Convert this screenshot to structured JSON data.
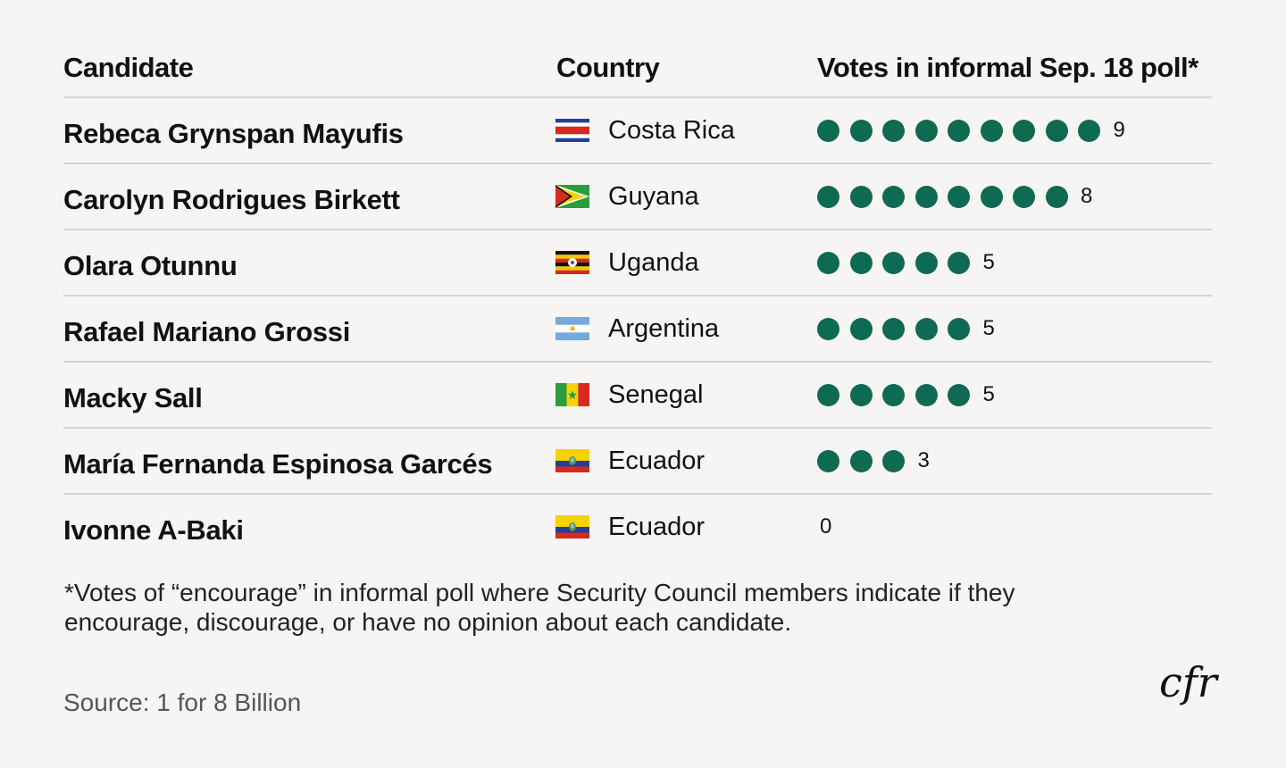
{
  "header": {
    "candidate": "Candidate",
    "country": "Country",
    "votes": "Votes in informal Sep. 18 poll*"
  },
  "rows": [
    {
      "candidate": "Rebeca Grynspan Mayufis",
      "country": "Costa Rica",
      "flag": "costa-rica-flag",
      "votes": 9,
      "votes_label": "9"
    },
    {
      "candidate": "Carolyn Rodrigues Birkett",
      "country": "Guyana",
      "flag": "guyana-flag",
      "votes": 8,
      "votes_label": "8"
    },
    {
      "candidate": "Olara Otunnu",
      "country": "Uganda",
      "flag": "uganda-flag",
      "votes": 5,
      "votes_label": "5"
    },
    {
      "candidate": "Rafael Mariano Grossi",
      "country": "Argentina",
      "flag": "argentina-flag",
      "votes": 5,
      "votes_label": "5"
    },
    {
      "candidate": "Macky Sall",
      "country": "Senegal",
      "flag": "senegal-flag",
      "votes": 5,
      "votes_label": "5"
    },
    {
      "candidate": "María Fernanda Espinosa Garcés",
      "country": "Ecuador",
      "flag": "ecuador-flag",
      "votes": 3,
      "votes_label": "3"
    },
    {
      "candidate": "Ivonne A-Baki",
      "country": "Ecuador",
      "flag": "ecuador-flag",
      "votes": 0,
      "votes_label": "0"
    }
  ],
  "footnote": "*Votes of “encourage” in informal poll where Security Council members indicate if they encourage, discourage, or have no opinion about each candidate.",
  "source": "Source: 1 for 8 Billion",
  "logo": {
    "text": "cfr",
    "icon": "cfr-logo-icon"
  },
  "colors": {
    "dot": "#0e6a50",
    "background": "#f6f5f3",
    "divider": "#d6d4d1"
  },
  "chart_data": {
    "type": "table",
    "columns": [
      "Candidate",
      "Country",
      "Votes in informal Sep. 18 poll*"
    ],
    "categories": [
      "Rebeca Grynspan Mayufis",
      "Carolyn Rodrigues Birkett",
      "Olara Otunnu",
      "Rafael Mariano Grossi",
      "Macky Sall",
      "María Fernanda Espinosa Garcés",
      "Ivonne A-Baki"
    ],
    "countries": [
      "Costa Rica",
      "Guyana",
      "Uganda",
      "Argentina",
      "Senegal",
      "Ecuador",
      "Ecuador"
    ],
    "values": [
      9,
      8,
      5,
      5,
      5,
      3,
      0
    ]
  }
}
